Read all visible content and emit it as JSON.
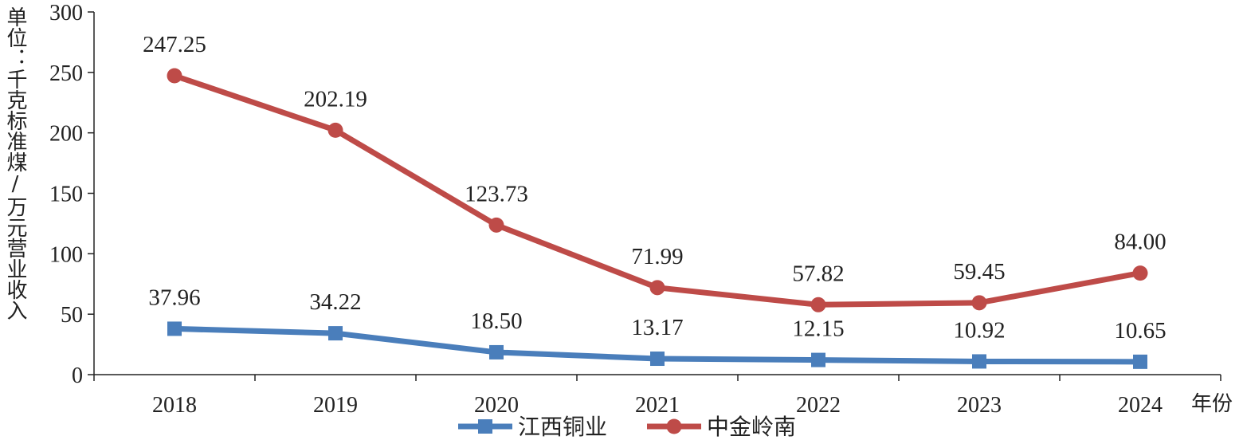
{
  "chart_data": {
    "type": "line",
    "title": "",
    "ylabel": "单位：千克标准煤/万元营业收入",
    "xlabel": "年份",
    "categories": [
      "2018",
      "2019",
      "2020",
      "2021",
      "2022",
      "2023",
      "2024"
    ],
    "ylim": [
      0,
      300
    ],
    "yticks": [
      "0",
      "50",
      "100",
      "150",
      "200",
      "250",
      "300"
    ],
    "grid": false,
    "legend_position": "bottom",
    "series": [
      {
        "name": "江西铜业",
        "color": "#4a7ebb",
        "marker": "square",
        "values": [
          37.96,
          34.22,
          18.5,
          13.17,
          12.15,
          10.92,
          10.65
        ],
        "labels": [
          "37.96",
          "34.22",
          "18.50",
          "13.17",
          "12.15",
          "10.92",
          "10.65"
        ]
      },
      {
        "name": "中金岭南",
        "color": "#be4b48",
        "marker": "circle",
        "values": [
          247.25,
          202.19,
          123.73,
          71.99,
          57.82,
          59.45,
          84.0
        ],
        "labels": [
          "247.25",
          "202.19",
          "123.73",
          "71.99",
          "57.82",
          "59.45",
          "84.00"
        ]
      }
    ]
  }
}
